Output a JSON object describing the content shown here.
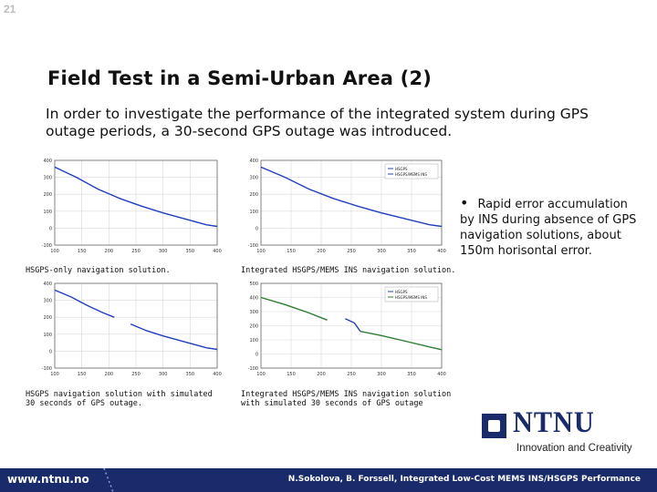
{
  "slide": {
    "number": "21",
    "title": "Field Test in a Semi-Urban Area (2)",
    "intro": "In order to investigate the performance of the integrated system during GPS outage periods, a 30-second GPS outage was introduced."
  },
  "bullet": {
    "text": "Rapid error accumulation by INS during absence of GPS navigation solutions, about 150m horisontal error."
  },
  "captions": {
    "c1": "HSGPS-only navigation solution.",
    "c2": "Integrated HSGPS/MEMS INS navigation solution.",
    "c3": "HSGPS navigation solution with simulated 30 seconds of GPS outage.",
    "c4": "Integrated HSGPS/MEMS INS navigation solution with simulated 30 seconds of GPS outage"
  },
  "logo": {
    "word": "NTNU",
    "tagline": "Innovation and Creativity"
  },
  "footer": {
    "url": "www.ntnu.no",
    "credit": "N.Sokolova, B. Forssell, Integrated Low-Cost MEMS INS/HSGPS Performance"
  },
  "colors": {
    "navy": "#1a2b6b",
    "series_blue": "#1f3fbf",
    "series_green": "#2e7d32"
  },
  "chart_data": [
    {
      "type": "line",
      "id": "c1",
      "xticks": [
        "100",
        "150",
        "200",
        "250",
        "300",
        "350",
        "400"
      ],
      "yticks": [
        "400",
        "300",
        "200",
        "100",
        "0",
        "-100"
      ],
      "xlim": [
        100,
        400
      ],
      "ylim": [
        -100,
        400
      ],
      "series": [
        {
          "values": [
            [
              100,
              360
            ],
            [
              140,
              300
            ],
            [
              180,
              230
            ],
            [
              220,
              175
            ],
            [
              260,
              130
            ],
            [
              300,
              90
            ],
            [
              340,
              55
            ],
            [
              380,
              20
            ],
            [
              400,
              10
            ]
          ]
        }
      ]
    },
    {
      "type": "line",
      "id": "c2",
      "xticks": [
        "100",
        "150",
        "200",
        "250",
        "300",
        "350",
        "400"
      ],
      "yticks": [
        "400",
        "300",
        "200",
        "100",
        "0",
        "-100"
      ],
      "xlim": [
        100,
        400
      ],
      "ylim": [
        -100,
        400
      ],
      "legend": [
        "HSGPS",
        "HSGPS/MEMS INS"
      ],
      "series": [
        {
          "values": [
            [
              100,
              360
            ],
            [
              140,
              300
            ],
            [
              180,
              230
            ],
            [
              220,
              175
            ],
            [
              260,
              130
            ],
            [
              300,
              90
            ],
            [
              340,
              55
            ],
            [
              380,
              20
            ],
            [
              400,
              10
            ]
          ]
        }
      ]
    },
    {
      "type": "line",
      "id": "c3",
      "xticks": [
        "100",
        "150",
        "200",
        "250",
        "300",
        "350",
        "400"
      ],
      "yticks": [
        "400",
        "300",
        "200",
        "100",
        "0",
        "-100"
      ],
      "xlim": [
        100,
        400
      ],
      "ylim": [
        -100,
        400
      ],
      "series": [
        {
          "values": [
            [
              100,
              360
            ],
            [
              130,
              320
            ],
            [
              160,
              270
            ],
            [
              190,
              225
            ],
            [
              210,
              200
            ]
          ]
        },
        {
          "values": [
            [
              240,
              160
            ],
            [
              270,
              120
            ],
            [
              300,
              90
            ],
            [
              340,
              55
            ],
            [
              380,
              20
            ],
            [
              400,
              10
            ]
          ]
        }
      ]
    },
    {
      "type": "line",
      "id": "c4",
      "xticks": [
        "100",
        "150",
        "200",
        "250",
        "300",
        "350",
        "400"
      ],
      "yticks": [
        "500",
        "400",
        "300",
        "200",
        "100",
        "0",
        "-100"
      ],
      "xlim": [
        100,
        400
      ],
      "ylim": [
        -100,
        500
      ],
      "legend": [
        "HSGPS",
        "HSGPS/MEMS INS"
      ],
      "series": [
        {
          "values": [
            [
              100,
              400
            ],
            [
              140,
              350
            ],
            [
              180,
              290
            ],
            [
              210,
              240
            ]
          ]
        },
        {
          "values": [
            [
              240,
              250
            ],
            [
              255,
              220
            ],
            [
              265,
              160
            ]
          ]
        },
        {
          "values": [
            [
              265,
              160
            ],
            [
              300,
              130
            ],
            [
              340,
              90
            ],
            [
              380,
              50
            ],
            [
              400,
              30
            ]
          ]
        }
      ]
    }
  ]
}
